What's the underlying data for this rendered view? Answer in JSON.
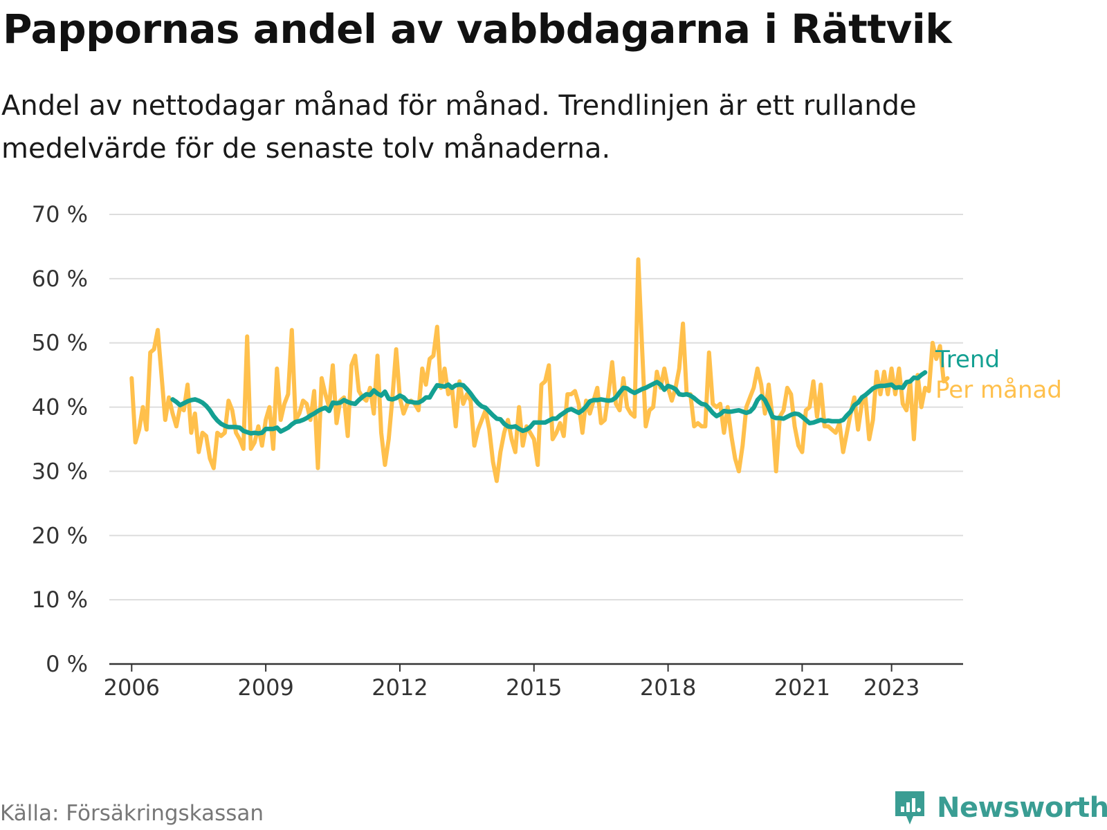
{
  "title": "Pappornas andel av vabbdagarna i Rättvik",
  "subtitle": "Andel av nettodagar månad för månad. Trendlinjen är ett rullande medelvärde för de senaste tolv månaderna.",
  "source": "Källa: Försäkringskassan",
  "brand": "Newsworthy",
  "colors": {
    "trend": "#14a092",
    "monthly": "#ffc04c",
    "grid": "#dddddd",
    "axis": "#333333",
    "brand": "#3a9d93"
  },
  "chart_data": {
    "type": "line",
    "title": "Pappornas andel av vabbdagarna i Rättvik",
    "ylim": [
      0,
      70
    ],
    "y_ticks": [
      0,
      10,
      20,
      30,
      40,
      50,
      60,
      70
    ],
    "y_tick_labels": [
      "0 %",
      "10 %",
      "20 %",
      "30 %",
      "40 %",
      "50 %",
      "60 %",
      "70 %"
    ],
    "x_range": [
      2005.5,
      2024.6
    ],
    "x_ticks": [
      2006,
      2009,
      2012,
      2015,
      2018,
      2021,
      2023
    ],
    "x_tick_labels": [
      "2006",
      "2009",
      "2012",
      "2015",
      "2018",
      "2021",
      "2023"
    ],
    "grid": true,
    "legend": "inline labels at line ends",
    "series": [
      {
        "name": "Per månad",
        "x_start": 2006.0,
        "step_months": 1,
        "values": [
          44.5,
          34.5,
          36.5,
          40,
          36.5,
          48.5,
          49,
          52,
          45,
          38,
          41.5,
          39,
          37,
          40,
          39.5,
          43.5,
          36,
          39,
          33,
          36,
          35.5,
          32,
          30.5,
          36,
          35.5,
          36,
          41,
          39.5,
          36,
          35,
          33.5,
          51,
          33.5,
          34.5,
          37,
          34,
          38,
          40,
          33.5,
          46,
          38,
          40.5,
          42,
          52,
          38,
          39,
          41,
          40.5,
          38,
          42.5,
          30.5,
          44.5,
          42,
          40,
          46.5,
          37.5,
          41,
          41.5,
          35.5,
          46.5,
          48,
          42.5,
          41.5,
          41,
          43,
          39,
          48,
          36,
          31,
          35,
          41.5,
          49,
          41.5,
          39,
          40.5,
          41,
          40.5,
          39.5,
          46,
          43.5,
          47.5,
          48,
          52.5,
          43,
          46,
          42,
          43,
          37,
          44,
          40.5,
          42,
          41,
          34,
          36.5,
          38,
          39.5,
          36.5,
          31.5,
          28.5,
          33,
          36,
          38,
          35,
          33,
          40,
          34,
          37,
          36,
          35,
          31,
          43.5,
          44,
          46.5,
          35,
          36,
          37.5,
          35.5,
          42,
          42,
          42.5,
          40.5,
          36,
          41,
          39,
          41,
          43,
          37.5,
          38,
          42,
          47,
          40.5,
          39.5,
          44.5,
          40,
          39,
          38.5,
          63,
          49.5,
          37,
          39.5,
          40,
          45.5,
          43,
          46,
          43,
          41,
          43,
          46,
          53,
          42,
          42,
          37,
          37.5,
          37,
          37,
          48.5,
          40.5,
          40,
          40.5,
          36,
          40,
          35.5,
          32,
          30,
          34,
          40,
          41.5,
          43,
          46,
          43.5,
          39,
          43.5,
          38.5,
          30,
          38.5,
          39.5,
          43,
          42,
          37,
          34,
          33,
          39.5,
          40,
          44,
          38.5,
          43.5,
          37,
          37,
          36.5,
          36,
          37.5,
          33,
          36,
          39,
          41.5,
          36.5,
          40.5,
          41.5,
          35,
          38,
          45.5,
          42,
          45.5,
          42,
          46,
          42,
          46,
          40.5,
          39.5,
          44,
          35,
          45,
          40,
          43,
          42.5,
          50,
          47.5,
          49.5,
          44,
          44.5
        ]
      },
      {
        "name": "Trend",
        "x_start": 2006.917,
        "step_months": 1,
        "values": [
          41.2,
          40.8,
          40.3,
          40.6,
          40.9,
          41.1,
          41.2,
          41,
          40.7,
          40.2,
          39.5,
          38.6,
          37.9,
          37.4,
          37.1,
          36.9,
          36.9,
          36.9,
          36.8,
          36.3,
          36.1,
          35.9,
          36,
          35.9,
          36,
          36.6,
          36.6,
          36.6,
          36.8,
          36.2,
          36.5,
          36.8,
          37.3,
          37.7,
          37.8,
          38,
          38.3,
          38.7,
          39,
          39.4,
          39.7,
          39.9,
          39.4,
          40.7,
          40.6,
          40.7,
          41.1,
          40.8,
          40.6,
          40.5,
          41.1,
          41.6,
          42,
          41.9,
          42.6,
          42.1,
          41.8,
          42.4,
          41.3,
          41.2,
          41.4,
          41.8,
          41.5,
          40.9,
          40.8,
          40.7,
          40.7,
          41,
          41.5,
          41.5,
          42.5,
          43.4,
          43.3,
          43.2,
          43.5,
          43,
          43.4,
          43.5,
          43.4,
          42.8,
          42.1,
          41.3,
          40.6,
          40.1,
          39.9,
          39.3,
          38.7,
          38.2,
          38.1,
          37.4,
          37,
          36.9,
          37,
          36.6,
          36.3,
          36.5,
          36.9,
          37.6,
          37.6,
          37.6,
          37.6,
          37.9,
          38.2,
          38.2,
          38.7,
          39.1,
          39.5,
          39.7,
          39.4,
          39.1,
          39.5,
          40.1,
          40.9,
          41.1,
          41.1,
          41.2,
          41.1,
          41,
          41.1,
          41.5,
          42.3,
          43,
          42.9,
          42.5,
          42.2,
          42.5,
          42.8,
          43,
          43.3,
          43.6,
          43.9,
          43.5,
          42.7,
          43.3,
          43.1,
          42.8,
          42,
          41.9,
          42,
          41.8,
          41.4,
          40.9,
          40.5,
          40.4,
          39.8,
          39.1,
          38.6,
          38.9,
          39.4,
          39.3,
          39.3,
          39.4,
          39.5,
          39.3,
          39.1,
          39.3,
          39.9,
          41.1,
          41.7,
          41.1,
          39.9,
          38.5,
          38.3,
          38.3,
          38.2,
          38.5,
          38.8,
          39,
          38.9,
          38.5,
          38,
          37.5,
          37.6,
          37.8,
          38,
          37.8,
          37.9,
          37.8,
          37.8,
          37.8,
          38,
          38.7,
          39.3,
          40.3,
          40.7,
          41.5,
          41.9,
          42.4,
          42.9,
          43.2,
          43.3,
          43.3,
          43.4,
          43.5,
          43,
          43.1,
          43,
          43.9,
          44,
          44.6,
          44.5,
          45,
          45.4
        ]
      }
    ]
  }
}
